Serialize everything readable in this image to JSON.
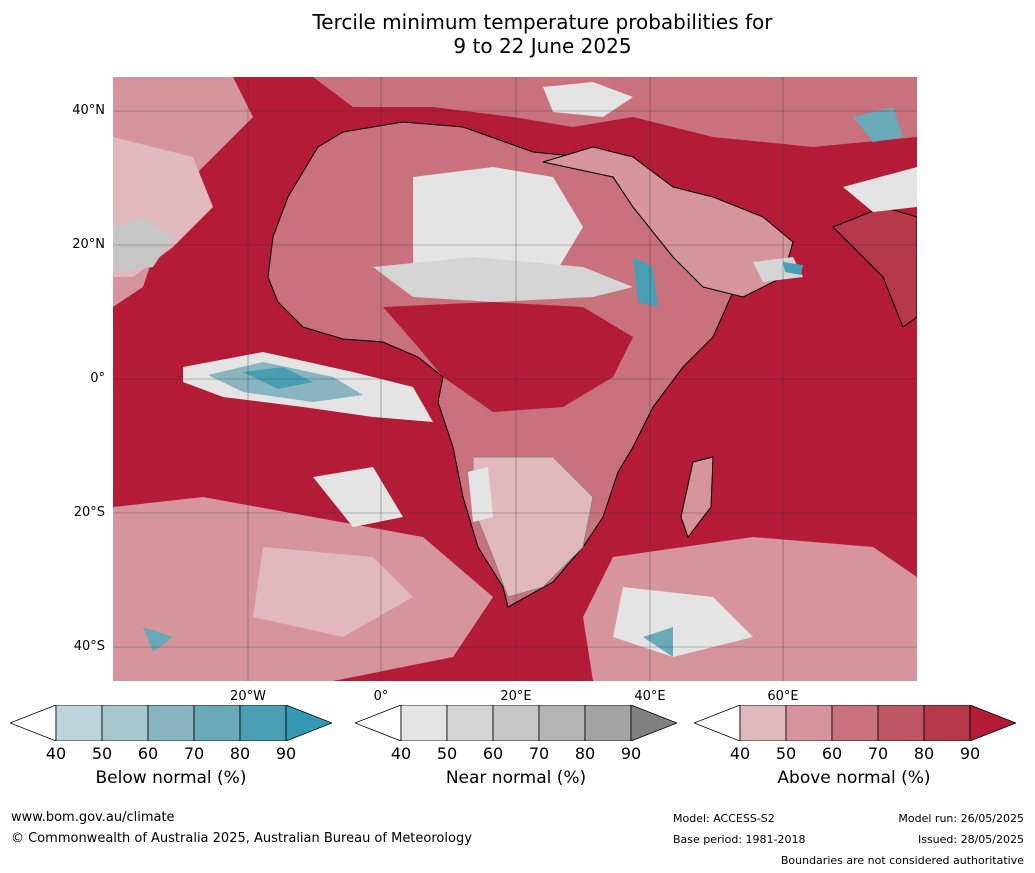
{
  "title": {
    "line1": "Tercile minimum temperature probabilities for",
    "line2": "9 to 22 June 2025"
  },
  "map": {
    "lat_labels": [
      "40°N",
      "20°N",
      "0°",
      "20°S",
      "40°S"
    ],
    "lon_labels": [
      "20°W",
      "0°",
      "20°E",
      "40°E",
      "60°E"
    ],
    "colors": {
      "dominant": "#b31b36",
      "ocean_above": "#b31b36",
      "land_outline": "#000000",
      "border": "#808080",
      "grid": "#333333"
    }
  },
  "legend": {
    "below": {
      "title": "Below normal (%)",
      "ticks": [
        "40",
        "50",
        "60",
        "70",
        "80",
        "90"
      ],
      "colors": [
        "#ffffff",
        "#bdd4dc",
        "#a6c6ce",
        "#88b5c0",
        "#6aa9b7",
        "#4a9eb3",
        "#3399b5"
      ]
    },
    "near": {
      "title": "Near normal (%)",
      "ticks": [
        "40",
        "50",
        "60",
        "70",
        "80",
        "90"
      ],
      "colors": [
        "#ffffff",
        "#e4e4e4",
        "#d5d5d5",
        "#c6c6c6",
        "#b4b4b4",
        "#a3a3a3",
        "#808080"
      ]
    },
    "above": {
      "title": "Above normal (%)",
      "ticks": [
        "40",
        "50",
        "60",
        "70",
        "80",
        "90"
      ],
      "colors": [
        "#ffffff",
        "#e2b8bf",
        "#d6949d",
        "#c9727d",
        "#bd5563",
        "#b5384b",
        "#b31b36"
      ]
    }
  },
  "footer": {
    "website": "www.bom.gov.au/climate",
    "copyright": "© Commonwealth of Australia 2025, Australian Bureau of Meteorology",
    "model": "Model: ACCESS-S2",
    "base_period": "Base period: 1981-2018",
    "model_run": "Model run: 26/05/2025",
    "issued": "Issued: 28/05/2025",
    "disclaimer": "Boundaries are not considered authoritative"
  }
}
